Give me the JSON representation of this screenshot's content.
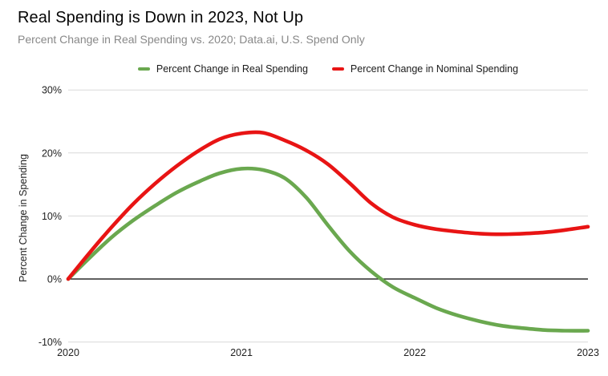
{
  "header": {
    "title": "Real Spending is Down in 2023, Not Up",
    "subtitle": "Percent Change in Real Spending vs. 2020; Data.ai, U.S. Spend Only"
  },
  "colors": {
    "real_series": "#6aa84f",
    "nominal_series": "#e81414",
    "gridline": "#d9d9d9",
    "zero_line": "#000000",
    "title_text": "#050505",
    "subtitle_text": "#888888",
    "axis_text": "#1f1f1f"
  },
  "legend": {
    "items": [
      {
        "label": "Percent Change in Real Spending",
        "color": "#6aa84f"
      },
      {
        "label": "Percent Change in Nominal Spending",
        "color": "#e81414"
      }
    ]
  },
  "chart_data": {
    "type": "line",
    "title": "Real Spending is Down in 2023, Not Up",
    "subtitle": "Percent Change in Real Spending vs. 2020; Data.ai, U.S. Spend Only",
    "xlabel": "",
    "ylabel": "Percent Change in Spending",
    "xlim": [
      2020,
      2023
    ],
    "ylim": [
      -10,
      30
    ],
    "grid": "horizontal",
    "legend_position": "top-center",
    "x_ticks": [
      {
        "value": 2020,
        "label": "2020"
      },
      {
        "value": 2021,
        "label": "2021"
      },
      {
        "value": 2022,
        "label": "2022"
      },
      {
        "value": 2023,
        "label": "2023"
      }
    ],
    "y_ticks": [
      {
        "value": 30,
        "label": "30%"
      },
      {
        "value": 20,
        "label": "20%"
      },
      {
        "value": 10,
        "label": "10%"
      },
      {
        "value": 0,
        "label": "0%"
      },
      {
        "value": -10,
        "label": "-10%"
      }
    ],
    "series": [
      {
        "name": "Percent Change in Real Spending",
        "key": "real",
        "color": "#6aa84f",
        "x": [
          2020,
          2020.125,
          2020.25,
          2020.375,
          2020.5,
          2020.625,
          2020.75,
          2020.875,
          2021,
          2021.125,
          2021.25,
          2021.375,
          2021.5,
          2021.625,
          2021.75,
          2021.875,
          2022,
          2022.125,
          2022.25,
          2022.375,
          2022.5,
          2022.625,
          2022.75,
          2022.875,
          2023
        ],
        "y": [
          0,
          3.4,
          6.6,
          9.3,
          11.6,
          13.7,
          15.4,
          16.8,
          17.5,
          17.3,
          16.0,
          12.9,
          8.5,
          4.4,
          1.2,
          -1.3,
          -3.0,
          -4.6,
          -5.8,
          -6.7,
          -7.4,
          -7.8,
          -8.1,
          -8.2,
          -8.2
        ]
      },
      {
        "name": "Percent Change in Nominal Spending",
        "key": "nominal",
        "color": "#e81414",
        "x": [
          2020,
          2020.125,
          2020.25,
          2020.375,
          2020.5,
          2020.625,
          2020.75,
          2020.875,
          2021,
          2021.125,
          2021.25,
          2021.375,
          2021.5,
          2021.625,
          2021.75,
          2021.875,
          2022,
          2022.125,
          2022.25,
          2022.375,
          2022.5,
          2022.625,
          2022.75,
          2022.875,
          2023
        ],
        "y": [
          0,
          4.2,
          8.2,
          11.9,
          15.1,
          17.9,
          20.3,
          22.2,
          23.1,
          23.2,
          22.0,
          20.4,
          18.2,
          15.2,
          12.0,
          9.8,
          8.6,
          7.9,
          7.5,
          7.2,
          7.1,
          7.2,
          7.4,
          7.8,
          8.3
        ]
      }
    ]
  }
}
